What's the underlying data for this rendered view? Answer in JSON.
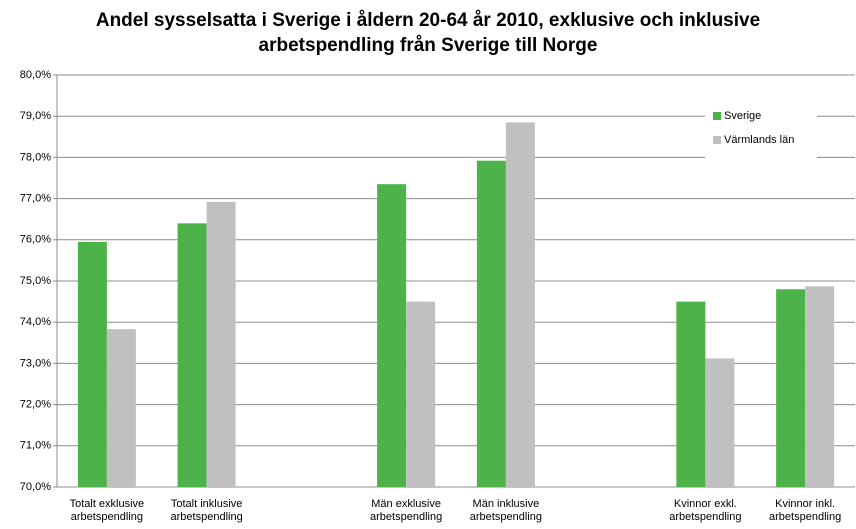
{
  "chart_data": {
    "type": "bar",
    "title": "Andel sysselsatta i Sverige i åldern 20-64 år 2010, exklusive och inklusive arbetspendling från Sverige till Norge",
    "categories": [
      "Totalt exklusive arbetspendling",
      "Totalt inklusive arbetspendling",
      null,
      "Män exklusive arbetspendling",
      "Män inklusive arbetspendling",
      null,
      "Kvinnor exkl. arbetspendling",
      "Kvinnor inkl. arbetspendling"
    ],
    "series": [
      {
        "name": "Sverige",
        "color": "#4db24a",
        "values": [
          75.95,
          76.4,
          null,
          77.35,
          77.92,
          null,
          74.5,
          74.8
        ]
      },
      {
        "name": "Värmlands län",
        "color": "#c0c0c0",
        "values": [
          73.83,
          76.92,
          null,
          74.5,
          78.85,
          null,
          73.12,
          74.87
        ]
      }
    ],
    "ylim": [
      70,
      80
    ],
    "yticks": [
      {
        "value": 70,
        "label": "70,0%"
      },
      {
        "value": 71,
        "label": "71,0%"
      },
      {
        "value": 72,
        "label": "72,0%"
      },
      {
        "value": 73,
        "label": "73,0%"
      },
      {
        "value": 74,
        "label": "74,0%"
      },
      {
        "value": 75,
        "label": "75,0%"
      },
      {
        "value": 76,
        "label": "76,0%"
      },
      {
        "value": 77,
        "label": "77,0%"
      },
      {
        "value": 78,
        "label": "78,0%"
      },
      {
        "value": 79,
        "label": "79,0%"
      },
      {
        "value": 80,
        "label": "80,0%"
      }
    ],
    "grid": true,
    "legend": "upper right"
  }
}
